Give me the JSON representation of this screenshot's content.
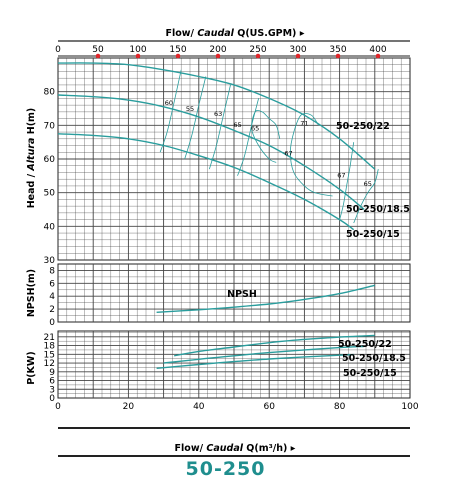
{
  "page": {
    "title": "50-250"
  },
  "colors": {
    "curve": "#2a9d9d",
    "grid": "#444444",
    "marker": "#e0262b",
    "title": "#1f8e8e"
  },
  "chart_data": {
    "type": "line",
    "top_axis": {
      "label_pre": "Flow/ ",
      "label_italic": "Caudal",
      "label_post": " Q(US.GPM)",
      "range": [
        0,
        440
      ],
      "ticks": [
        0,
        50,
        100,
        150,
        200,
        250,
        300,
        350,
        400
      ]
    },
    "bottom_axis": {
      "label_pre": "Flow/ ",
      "label_italic": "Caudal",
      "label_post": " Q(m³/h)",
      "range": [
        0,
        100
      ],
      "ticks": [
        0,
        20,
        40,
        60,
        80,
        100
      ]
    },
    "head_panel": {
      "ylabel_pre": "Head / ",
      "ylabel_italic": "Altura",
      "ylabel_post": " H(m)",
      "ylim": [
        30,
        90
      ],
      "ticks": [
        30,
        40,
        50,
        60,
        70,
        80
      ],
      "series": [
        {
          "name": "50-250/22",
          "x": [
            0,
            10,
            20,
            30,
            40,
            50,
            60,
            70,
            80,
            90
          ],
          "y": [
            88.5,
            88.5,
            88,
            86.5,
            84.5,
            82,
            78,
            73,
            66,
            57
          ]
        },
        {
          "name": "50-250/18.5",
          "x": [
            0,
            10,
            20,
            30,
            40,
            50,
            60,
            70,
            80,
            87
          ],
          "y": [
            79,
            78.5,
            77.5,
            75.5,
            72.5,
            68.5,
            64,
            58,
            51,
            45
          ]
        },
        {
          "name": "50-250/15",
          "x": [
            0,
            10,
            20,
            30,
            40,
            50,
            60,
            70,
            80,
            84
          ],
          "y": [
            67.5,
            67,
            66,
            64,
            61,
            57.5,
            53,
            48,
            42,
            39
          ]
        }
      ],
      "efficiency_labels": [
        {
          "text": "55",
          "x": 37.5,
          "y": 74.2
        },
        {
          "text": "60",
          "x": 31.5,
          "y": 76
        },
        {
          "text": "63",
          "x": 45.5,
          "y": 72.8
        },
        {
          "text": "65",
          "x": 51,
          "y": 69.5
        },
        {
          "text": "65",
          "x": 56,
          "y": 68.5
        },
        {
          "text": "71",
          "x": 70,
          "y": 70
        },
        {
          "text": "67",
          "x": 65.5,
          "y": 61
        },
        {
          "text": "67",
          "x": 80.5,
          "y": 54.5
        },
        {
          "text": "65",
          "x": 88,
          "y": 52
        }
      ],
      "efficiency_contours": [
        {
          "x": [
            35,
            33,
            31,
            29
          ],
          "y": [
            86.5,
            77,
            68,
            62
          ]
        },
        {
          "x": [
            42,
            40,
            38,
            36
          ],
          "y": [
            84.5,
            76,
            67,
            60
          ]
        },
        {
          "x": [
            49,
            47,
            45,
            43
          ],
          "y": [
            82,
            73,
            64,
            57
          ]
        },
        {
          "x": [
            57,
            55,
            53,
            51
          ],
          "y": [
            78,
            70,
            61,
            55
          ]
        },
        {
          "x": [
            63,
            62,
            60,
            58,
            56,
            55,
            57,
            60,
            62
          ],
          "y": [
            66,
            70,
            72,
            74,
            74,
            69,
            64,
            60,
            59
          ]
        },
        {
          "x": [
            74,
            72,
            69,
            67,
            66,
            67,
            70,
            73,
            78
          ],
          "y": [
            70,
            73,
            73,
            68,
            62,
            56,
            52,
            50,
            49
          ]
        },
        {
          "x": [
            84,
            83,
            82,
            81,
            80
          ],
          "y": [
            65,
            58,
            52,
            46,
            42
          ]
        },
        {
          "x": [
            91,
            90,
            88,
            86,
            84
          ],
          "y": [
            57,
            53,
            50,
            46,
            41
          ]
        }
      ]
    },
    "npsh_panel": {
      "ylabel": "NPSH(m)",
      "ylim": [
        0,
        9
      ],
      "ticks": [
        0,
        2,
        4,
        6,
        8
      ],
      "series": [
        {
          "name": "NPSH",
          "x": [
            28,
            40,
            50,
            60,
            70,
            80,
            90
          ],
          "y": [
            1.5,
            1.9,
            2.3,
            2.8,
            3.5,
            4.4,
            5.7
          ]
        }
      ]
    },
    "power_panel": {
      "ylabel": "P(KW)",
      "ylim": [
        0,
        23
      ],
      "ticks": [
        0,
        3,
        6,
        9,
        12,
        15,
        18,
        21
      ],
      "series": [
        {
          "name": "50-250/22",
          "x": [
            33,
            40,
            50,
            60,
            70,
            80,
            90
          ],
          "y": [
            14.5,
            16,
            17.5,
            19,
            20.1,
            20.9,
            21.5
          ]
        },
        {
          "name": "50-250/18.5",
          "x": [
            30,
            40,
            50,
            60,
            70,
            80,
            87
          ],
          "y": [
            12,
            13.3,
            14.5,
            15.6,
            16.5,
            17.3,
            17.7
          ]
        },
        {
          "name": "50-250/15",
          "x": [
            28,
            40,
            50,
            60,
            70,
            80,
            84
          ],
          "y": [
            10.2,
            11.5,
            12.5,
            13.4,
            14.1,
            14.7,
            14.9
          ]
        }
      ]
    },
    "grid": true,
    "markers_top_axis": true
  }
}
